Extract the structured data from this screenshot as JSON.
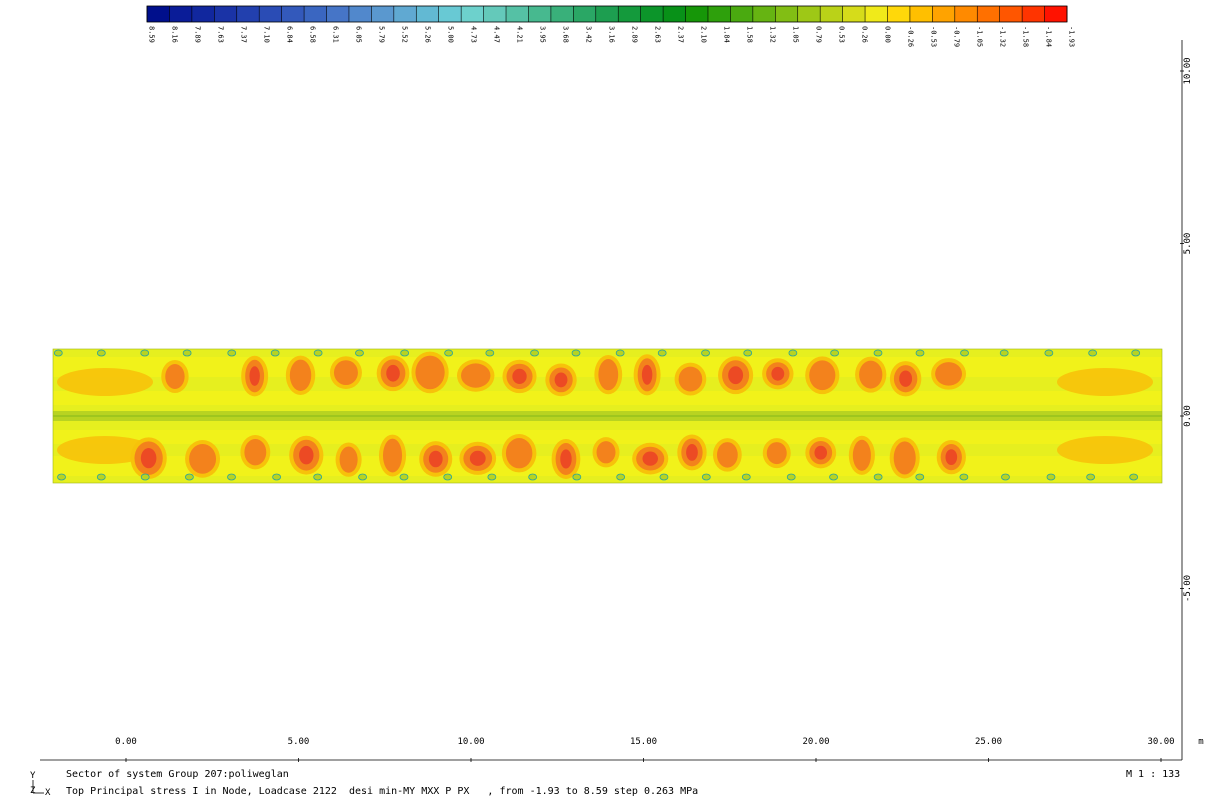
{
  "legend": {
    "values": [
      "8.59",
      "8.16",
      "7.89",
      "7.63",
      "7.37",
      "7.10",
      "6.84",
      "6.58",
      "6.31",
      "6.05",
      "5.79",
      "5.52",
      "5.26",
      "5.00",
      "4.73",
      "4.47",
      "4.21",
      "3.95",
      "3.68",
      "3.42",
      "3.16",
      "2.89",
      "2.63",
      "2.37",
      "2.10",
      "1.84",
      "1.58",
      "1.32",
      "1.05",
      "0.79",
      "0.53",
      "0.26",
      "0.00",
      "-0.26",
      "-0.53",
      "-0.79",
      "-1.05",
      "-1.32",
      "-1.58",
      "-1.84",
      "-1.93"
    ],
    "colors": [
      "#000f8c",
      "#0a1c98",
      "#11279e",
      "#1a33a6",
      "#2240ae",
      "#2a4cb5",
      "#3359bb",
      "#3a66c1",
      "#4675c7",
      "#5188cc",
      "#5a98cf",
      "#60a9d2",
      "#62b9d3",
      "#68c9d4",
      "#6dd1cc",
      "#64c9ba",
      "#55c1a5",
      "#47b98f",
      "#39b07a",
      "#2aa765",
      "#1d9e50",
      "#149a3c",
      "#0c952a",
      "#089118",
      "#169608",
      "#2ea00c",
      "#4aaa10",
      "#66b412",
      "#82be14",
      "#9ec816",
      "#bad218",
      "#d6dc1a",
      "#f0ea1a",
      "#ffd80a",
      "#ffbf00",
      "#ffa300",
      "#ff8a00",
      "#ff7000",
      "#ff5600",
      "#ff3400",
      "#ff1200"
    ]
  },
  "x_axis": {
    "labels": [
      "0.00",
      "5.00",
      "10.00",
      "15.00",
      "20.00",
      "25.00",
      "30.00"
    ],
    "unit": "m"
  },
  "y_axis": {
    "labels": [
      "10.00",
      "5.00",
      "0.00",
      "-5.00"
    ]
  },
  "caption": {
    "line1": "Sector of system Group 207:poliweglan",
    "line2": "Top Principal stress I in Node, Loadcase 2122  desi min-MY MXX P PX   , from -1.93 to 8.59 step 0.263 MPa",
    "scale": "M 1 : 133"
  },
  "axis_indicator": {
    "y": "Y",
    "z": "Z",
    "x": "X"
  },
  "plot_colors": {
    "base": "#e6ef1f",
    "light": "#f2f21a",
    "warm": "#f7c20a",
    "hot": "#f3821c",
    "peak": "#ec4a24",
    "green": "#b8d321",
    "ring": "#28a3a0"
  }
}
